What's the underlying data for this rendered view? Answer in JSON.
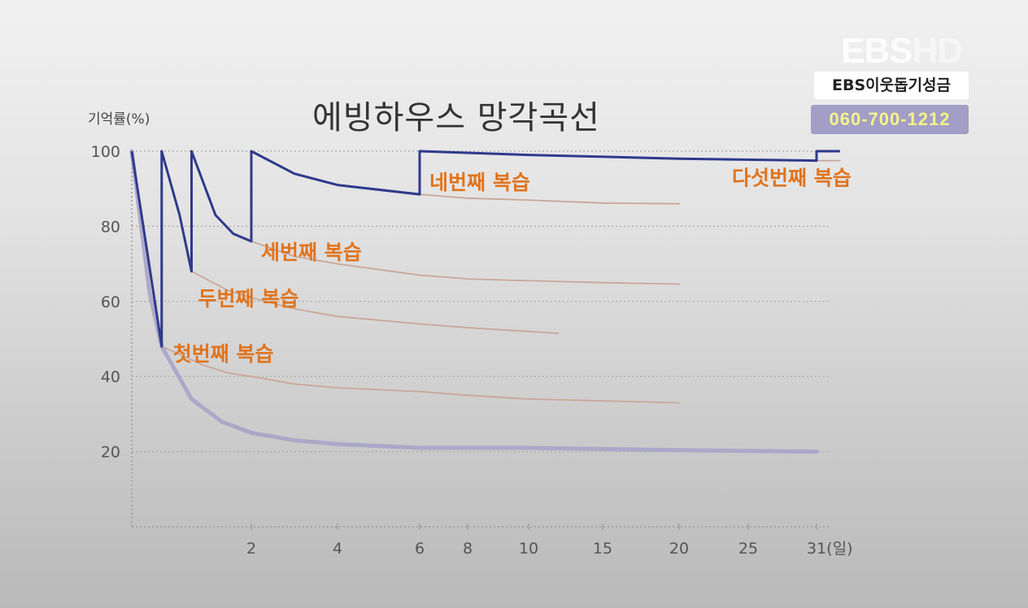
{
  "overlay": {
    "logo_main": "EBS",
    "logo_hd": "HD",
    "donation_label": "EBS이웃돕기성금",
    "donation_phone": "060-700-1212"
  },
  "chart_data": {
    "type": "line",
    "title": "에빙하우스 망각곡선",
    "ylabel": "기억률(%)",
    "xlabel": "",
    "ylim": [
      0,
      100
    ],
    "yticks": [
      20,
      40,
      60,
      80,
      100
    ],
    "x_tick_labels": [
      "2",
      "4",
      "6",
      "8",
      "10",
      "15",
      "20",
      "25",
      "31(일)"
    ],
    "grid": true,
    "colors": {
      "review_curve": "#2e3a8c",
      "decay": "#c9a79a",
      "baseline": "#a8a4c8",
      "annotation": "#e0741e"
    },
    "series": [
      {
        "role": "baseline",
        "points": [
          [
            0,
            100
          ],
          [
            0.3,
            62
          ],
          [
            0.5,
            48
          ],
          [
            1,
            34
          ],
          [
            1.5,
            28
          ],
          [
            2,
            25
          ],
          [
            3,
            23
          ],
          [
            4,
            22
          ],
          [
            6,
            21
          ],
          [
            8,
            21
          ],
          [
            10,
            21
          ],
          [
            15,
            20.7
          ],
          [
            20,
            20.4
          ],
          [
            25,
            20.2
          ],
          [
            31,
            20
          ]
        ]
      },
      {
        "role": "review",
        "points": [
          [
            0,
            100
          ],
          [
            0.5,
            48
          ],
          [
            0.5,
            100
          ],
          [
            0.8,
            83
          ],
          [
            1,
            68
          ],
          [
            1,
            100
          ],
          [
            1.4,
            83
          ],
          [
            1.7,
            78
          ],
          [
            2,
            76
          ],
          [
            2,
            100
          ],
          [
            3,
            94
          ],
          [
            4,
            91
          ],
          [
            6,
            88.5
          ],
          [
            6,
            100
          ],
          [
            10,
            99
          ],
          [
            20,
            98
          ],
          [
            31,
            97.5
          ],
          [
            31,
            100
          ],
          [
            31.8,
            100
          ]
        ]
      },
      {
        "role": "decay",
        "points": [
          [
            0.5,
            48
          ],
          [
            1.2,
            43
          ],
          [
            1.6,
            41
          ],
          [
            2,
            40
          ],
          [
            3,
            38
          ],
          [
            4,
            37
          ],
          [
            6,
            36
          ],
          [
            8,
            35
          ],
          [
            10,
            34
          ],
          [
            15,
            33.5
          ],
          [
            20,
            33
          ]
        ]
      },
      {
        "role": "decay",
        "points": [
          [
            1,
            68
          ],
          [
            1.6,
            63
          ],
          [
            2,
            61
          ],
          [
            3,
            58
          ],
          [
            4,
            56
          ],
          [
            6,
            54
          ],
          [
            8,
            53
          ],
          [
            10,
            52
          ],
          [
            12,
            51.5
          ]
        ]
      },
      {
        "role": "decay",
        "points": [
          [
            2,
            76
          ],
          [
            3,
            72
          ],
          [
            4,
            70
          ],
          [
            6,
            67
          ],
          [
            8,
            66
          ],
          [
            10,
            65.5
          ],
          [
            15,
            65
          ],
          [
            20,
            64.6
          ]
        ]
      },
      {
        "role": "decay",
        "points": [
          [
            6,
            88.5
          ],
          [
            8,
            87.5
          ],
          [
            10,
            87
          ],
          [
            15,
            86.2
          ],
          [
            20,
            86
          ]
        ]
      },
      {
        "role": "decay",
        "points": [
          [
            31,
            97.5
          ],
          [
            31.8,
            97.5
          ]
        ]
      }
    ],
    "annotations": [
      {
        "text": "첫번째 복습",
        "x": 0.5,
        "y": 48
      },
      {
        "text": "두번째 복습",
        "x": 1,
        "y": 68
      },
      {
        "text": "세번째 복습",
        "x": 2,
        "y": 76
      },
      {
        "text": "네번째 복습",
        "x": 6,
        "y": 88.5
      },
      {
        "text": "다섯번째 복습",
        "x": 31,
        "y": 97.5
      }
    ]
  }
}
